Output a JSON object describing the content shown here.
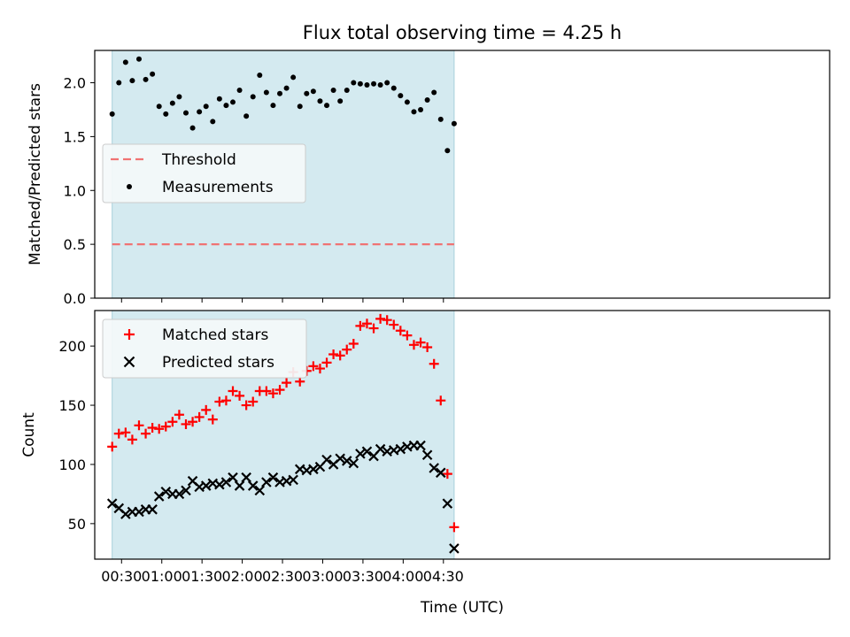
{
  "title": "Flux total observing time = 4.25 h",
  "chart_data": [
    {
      "type": "scatter",
      "ylabel": "Matched/Predicted stars",
      "ylim": [
        0,
        2.3
      ],
      "yticks": [
        0.0,
        0.5,
        1.0,
        1.5,
        2.0
      ],
      "ytick_labels": [
        "0.0",
        "0.5",
        "1.0",
        "1.5",
        "2.0"
      ],
      "xlim_min": [
        10,
        558
      ],
      "shaded_span_min": [
        23,
        278
      ],
      "threshold": {
        "label": "Threshold",
        "value": 0.5,
        "color": "#f07373"
      },
      "legend_loc": "center-left",
      "series": [
        {
          "name": "Measurements",
          "marker": "dot",
          "color": "#000000",
          "x_min": [
            23,
            28,
            33,
            38,
            43,
            48,
            53,
            58,
            63,
            68,
            73,
            78,
            83,
            88,
            93,
            98,
            103,
            108,
            113,
            118,
            123,
            128,
            133,
            138,
            143,
            148,
            153,
            158,
            163,
            168,
            173,
            178,
            183,
            188,
            193,
            198,
            203,
            208,
            213,
            218,
            223,
            228,
            233,
            238,
            243,
            248,
            253,
            258,
            263,
            268,
            273,
            278
          ],
          "y": [
            1.71,
            2.0,
            2.19,
            2.02,
            2.22,
            2.03,
            2.08,
            1.78,
            1.71,
            1.81,
            1.87,
            1.72,
            1.58,
            1.73,
            1.78,
            1.64,
            1.85,
            1.79,
            1.82,
            1.93,
            1.69,
            1.87,
            2.07,
            1.91,
            1.79,
            1.9,
            1.95,
            2.05,
            1.78,
            1.9,
            1.92,
            1.83,
            1.79,
            1.93,
            1.83,
            1.93,
            2.0,
            1.99,
            1.98,
            1.99,
            1.98,
            2.0,
            1.95,
            1.88,
            1.82,
            1.73,
            1.75,
            1.84,
            1.91,
            1.66,
            1.37,
            1.62
          ]
        }
      ]
    },
    {
      "type": "scatter",
      "ylabel": "Count",
      "xlabel": "Time (UTC)",
      "ylim": [
        20,
        230
      ],
      "yticks": [
        50,
        100,
        150,
        200
      ],
      "ytick_labels": [
        "50",
        "100",
        "150",
        "200"
      ],
      "xlim_min": [
        10,
        558
      ],
      "xticks_min": [
        30,
        60,
        90,
        120,
        150,
        180,
        210,
        240,
        270
      ],
      "xtick_labels": [
        "00:30",
        "01:00",
        "01:30",
        "02:00",
        "02:30",
        "03:00",
        "03:30",
        "04:00",
        "04:30"
      ],
      "shaded_span_min": [
        23,
        278
      ],
      "legend_loc": "top-left",
      "series": [
        {
          "name": "Matched stars",
          "marker": "plus",
          "color": "#ff0000",
          "x_min": [
            23,
            28,
            33,
            38,
            43,
            48,
            53,
            58,
            63,
            68,
            73,
            78,
            83,
            88,
            93,
            98,
            103,
            108,
            113,
            118,
            123,
            128,
            133,
            138,
            143,
            148,
            153,
            158,
            163,
            168,
            173,
            178,
            183,
            188,
            193,
            198,
            203,
            208,
            213,
            218,
            223,
            228,
            233,
            238,
            243,
            248,
            253,
            258,
            263,
            268,
            273,
            278
          ],
          "y": [
            115,
            126,
            127,
            121,
            133,
            126,
            131,
            130,
            132,
            136,
            142,
            134,
            136,
            140,
            146,
            138,
            153,
            154,
            162,
            158,
            150,
            153,
            162,
            162,
            160,
            163,
            169,
            178,
            170,
            179,
            183,
            181,
            186,
            193,
            192,
            197,
            202,
            217,
            219,
            215,
            223,
            222,
            218,
            213,
            209,
            201,
            203,
            199,
            185,
            154,
            92,
            47
          ]
        },
        {
          "name": "Predicted stars",
          "marker": "x",
          "color": "#000000",
          "x_min": [
            23,
            28,
            33,
            38,
            43,
            48,
            53,
            58,
            63,
            68,
            73,
            78,
            83,
            88,
            93,
            98,
            103,
            108,
            113,
            118,
            123,
            128,
            133,
            138,
            143,
            148,
            153,
            158,
            163,
            168,
            173,
            178,
            183,
            188,
            193,
            198,
            203,
            208,
            213,
            218,
            223,
            228,
            233,
            238,
            243,
            248,
            253,
            258,
            263,
            268,
            273,
            278
          ],
          "y": [
            67,
            63,
            58,
            60,
            60,
            62,
            62,
            73,
            77,
            75,
            75,
            78,
            86,
            81,
            82,
            84,
            83,
            85,
            89,
            82,
            89,
            82,
            78,
            85,
            89,
            85,
            86,
            87,
            96,
            95,
            96,
            98,
            104,
            100,
            105,
            103,
            101,
            109,
            111,
            107,
            113,
            111,
            112,
            113,
            115,
            116,
            116,
            108,
            97,
            93,
            67,
            29
          ]
        }
      ]
    }
  ],
  "colors": {
    "shade": "#d4eaf0",
    "shade_edge": "#a8d0dc",
    "legend_bg": "#f4f8fa"
  }
}
